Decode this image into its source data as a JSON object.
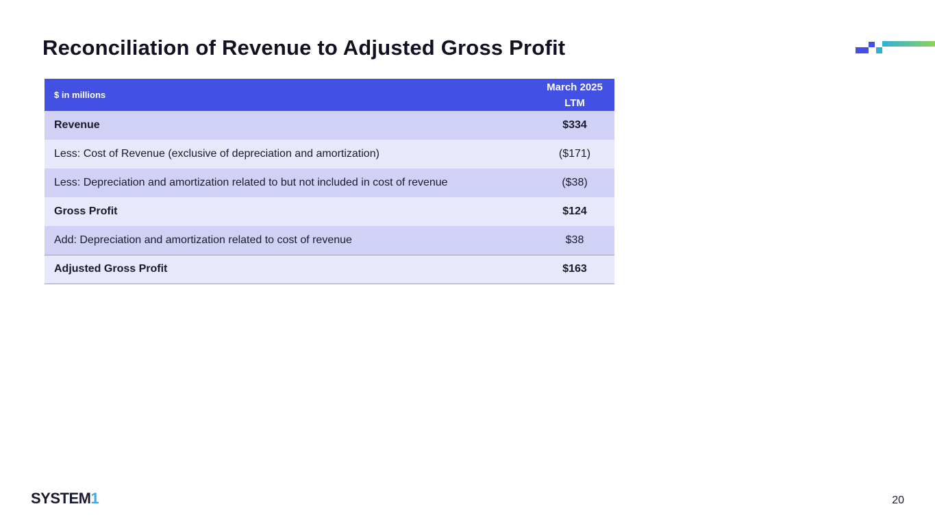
{
  "slide": {
    "title": "Reconciliation of Revenue to Adjusted Gross Profit",
    "page_number": "20"
  },
  "logo": {
    "text_main": "SYSTEM",
    "text_accent": "1"
  },
  "table": {
    "header_label": "$ in millions",
    "header_period_line1": "March 2025",
    "header_period_line2": "LTM",
    "rows": [
      {
        "label": "Revenue",
        "value": "$334"
      },
      {
        "label": "Less: Cost of Revenue (exclusive of depreciation and amortization)",
        "value": "($171)"
      },
      {
        "label": "Less: Depreciation and amortization related to but not included in cost of revenue",
        "value": "($38)"
      },
      {
        "label": "Gross Profit",
        "value": "$124"
      },
      {
        "label": "Add: Depreciation and amortization related to cost of revenue",
        "value": "$38"
      },
      {
        "label": "Adjusted Gross Profit",
        "value": "$163"
      }
    ]
  },
  "colors": {
    "header_bg": "#4250e3",
    "row_dark": "#d0d1f5",
    "row_light": "#e7e8fb",
    "accent_cyan": "#2bb0d6",
    "accent_green": "#8ed25a"
  }
}
